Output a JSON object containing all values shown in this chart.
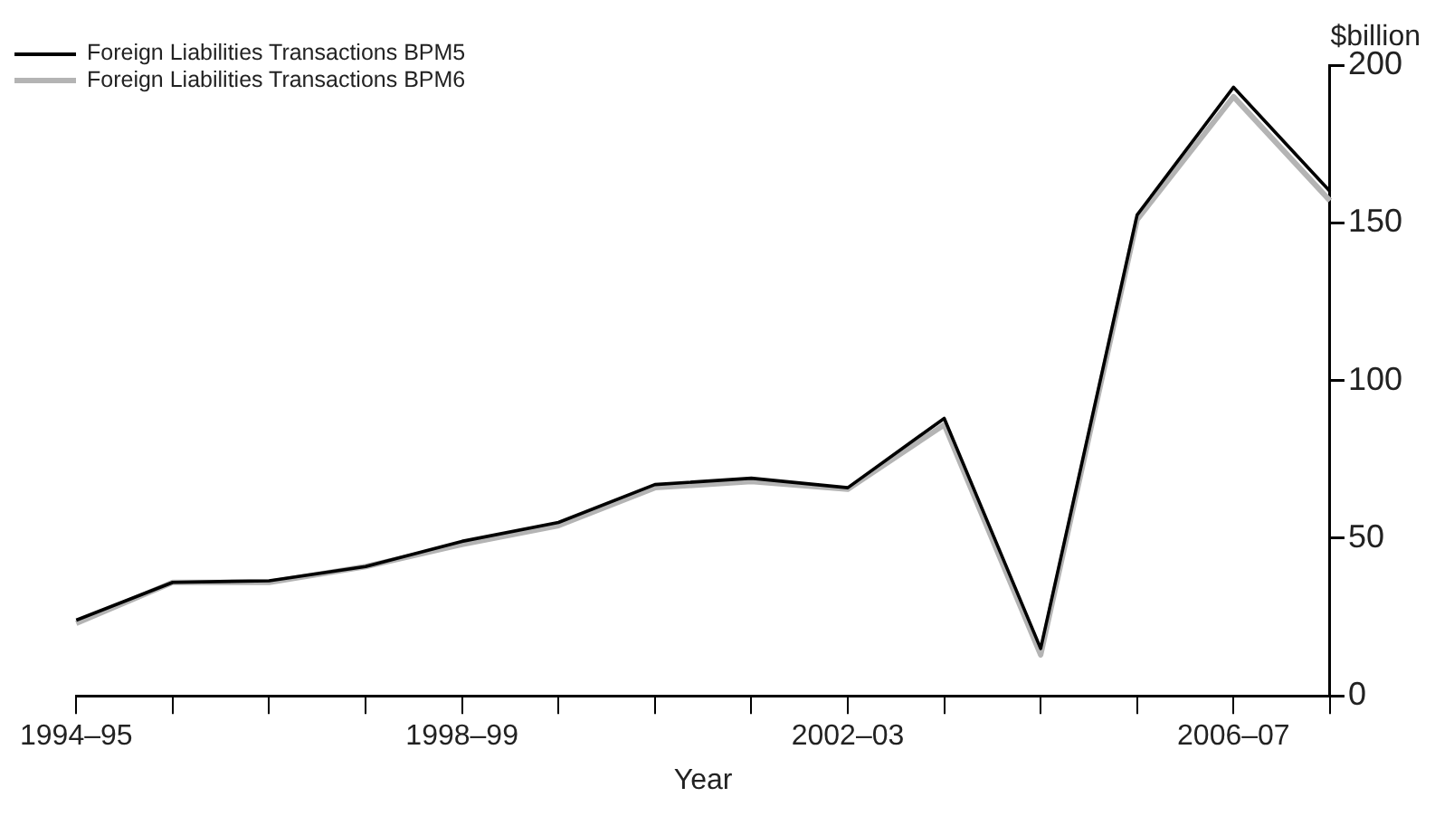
{
  "chart_data": {
    "type": "line",
    "xlabel": "Year",
    "ylabel": "$billion",
    "categories": [
      "1994–95",
      null,
      null,
      null,
      "1998–99",
      null,
      null,
      null,
      "2002–03",
      null,
      null,
      null,
      "2006–07",
      null
    ],
    "series": [
      {
        "name": "Foreign Liabilities Transactions BPM5",
        "color": "#000000",
        "values": [
          24,
          36,
          36.5,
          41,
          49,
          55,
          67,
          69,
          66,
          88,
          15,
          152.5,
          193,
          160
        ]
      },
      {
        "name": "Foreign Liabilities Transactions BPM6",
        "color": "#b4b4b4",
        "values": [
          23,
          36,
          36,
          41,
          48,
          54,
          66,
          68,
          65.5,
          86,
          13,
          151,
          190,
          157
        ]
      }
    ],
    "ylim": [
      0,
      200
    ],
    "yticks": [
      0,
      50,
      100,
      150,
      200
    ],
    "grid": false,
    "legend": "top left",
    "marker": "none",
    "line_style": "solid"
  }
}
